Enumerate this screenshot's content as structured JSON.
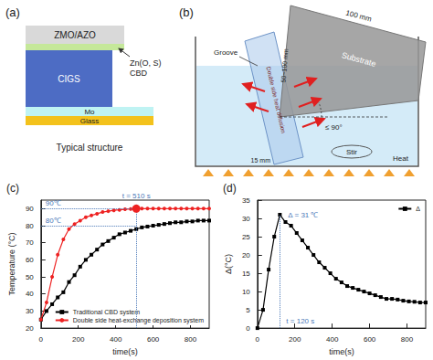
{
  "diagrams": {
    "a": {
      "label": "(a)",
      "layers": [
        "ZMO/AZO",
        "CIGS",
        "Mo",
        "Glass"
      ],
      "callout": [
        "Zn(O, S)",
        "CBD"
      ],
      "caption": "Typical structure"
    },
    "b": {
      "label": "(b)",
      "substrate": "Substrate",
      "top_dimension": "100 mm",
      "side_dimension": "50~100 mm",
      "groove": "Groove",
      "groove_width": "15 mm",
      "flow": "Double side heat diffusion",
      "angle": "≤ 90°",
      "stir": "Stir",
      "heat": "Heat"
    }
  },
  "chart_data": [
    {
      "type": "line",
      "title": "(c)",
      "x_label": "time(s)",
      "y_label": "Temperature (°C)",
      "x": [
        0,
        30,
        60,
        90,
        120,
        150,
        180,
        210,
        240,
        270,
        300,
        330,
        360,
        390,
        420,
        450,
        480,
        510,
        540,
        570,
        600,
        630,
        660,
        690,
        720,
        750,
        780,
        810,
        840,
        870,
        900
      ],
      "series": [
        {
          "name": "Traditional CBD system",
          "color": "#000000",
          "marker": "square",
          "values": [
            25,
            30,
            34,
            38,
            41,
            47,
            51,
            56,
            60,
            63,
            66,
            69,
            71,
            73,
            75,
            76,
            77,
            78,
            79,
            79.5,
            80,
            80.5,
            81,
            81.5,
            82,
            82,
            82.5,
            82.5,
            83,
            83,
            83
          ]
        },
        {
          "name": "Double side heat-exchange deposition system",
          "color": "#ee2222",
          "marker": "circle",
          "values": [
            25,
            35,
            50,
            63,
            72,
            78,
            81,
            83,
            85,
            86,
            87,
            88,
            88.5,
            89,
            89.3,
            89.6,
            89.8,
            90,
            90,
            90,
            90,
            90,
            90,
            90,
            90,
            90,
            90,
            90,
            90,
            90,
            90
          ]
        }
      ],
      "xlim": [
        0,
        900
      ],
      "xticks": [
        0,
        200,
        400,
        600,
        800
      ],
      "ylim": [
        20,
        95
      ],
      "yticks": [
        20,
        30,
        40,
        50,
        60,
        70,
        80,
        90
      ],
      "reference_levels": [
        {
          "y": 90,
          "label": "90℃"
        },
        {
          "y": 80,
          "label": "80℃"
        }
      ],
      "marker": {
        "x": 510,
        "y": 90,
        "label": "t = 510 s"
      },
      "legend": "lower right",
      "grid": false
    },
    {
      "type": "line",
      "title": "(d)",
      "x_label": "time(s)",
      "y_label": "Δ(°C)",
      "x": [
        0,
        30,
        60,
        90,
        120,
        150,
        180,
        210,
        240,
        270,
        300,
        330,
        360,
        390,
        420,
        450,
        480,
        510,
        540,
        570,
        600,
        630,
        660,
        690,
        720,
        750,
        780,
        810,
        840,
        870,
        900
      ],
      "series": [
        {
          "name": "Δ",
          "color": "#000000",
          "marker": "square",
          "values": [
            0,
            5,
            16,
            25,
            31,
            29,
            28,
            26,
            24,
            22,
            20,
            18,
            16.5,
            15,
            13.5,
            12.5,
            11.5,
            11,
            10.5,
            10,
            9.5,
            9,
            8.5,
            8,
            8,
            7.8,
            7.5,
            7.3,
            7.2,
            7,
            7
          ]
        }
      ],
      "xlim": [
        0,
        900
      ],
      "xticks": [
        0,
        200,
        400,
        600,
        800
      ],
      "ylim": [
        0,
        35
      ],
      "yticks": [
        0,
        5,
        10,
        15,
        20,
        25,
        30,
        35
      ],
      "marker": {
        "x": 120,
        "y": 31,
        "label": "t = 120 s",
        "peak_label": "Δ = 31 ℃"
      },
      "legend": "upper right",
      "grid": false
    }
  ]
}
